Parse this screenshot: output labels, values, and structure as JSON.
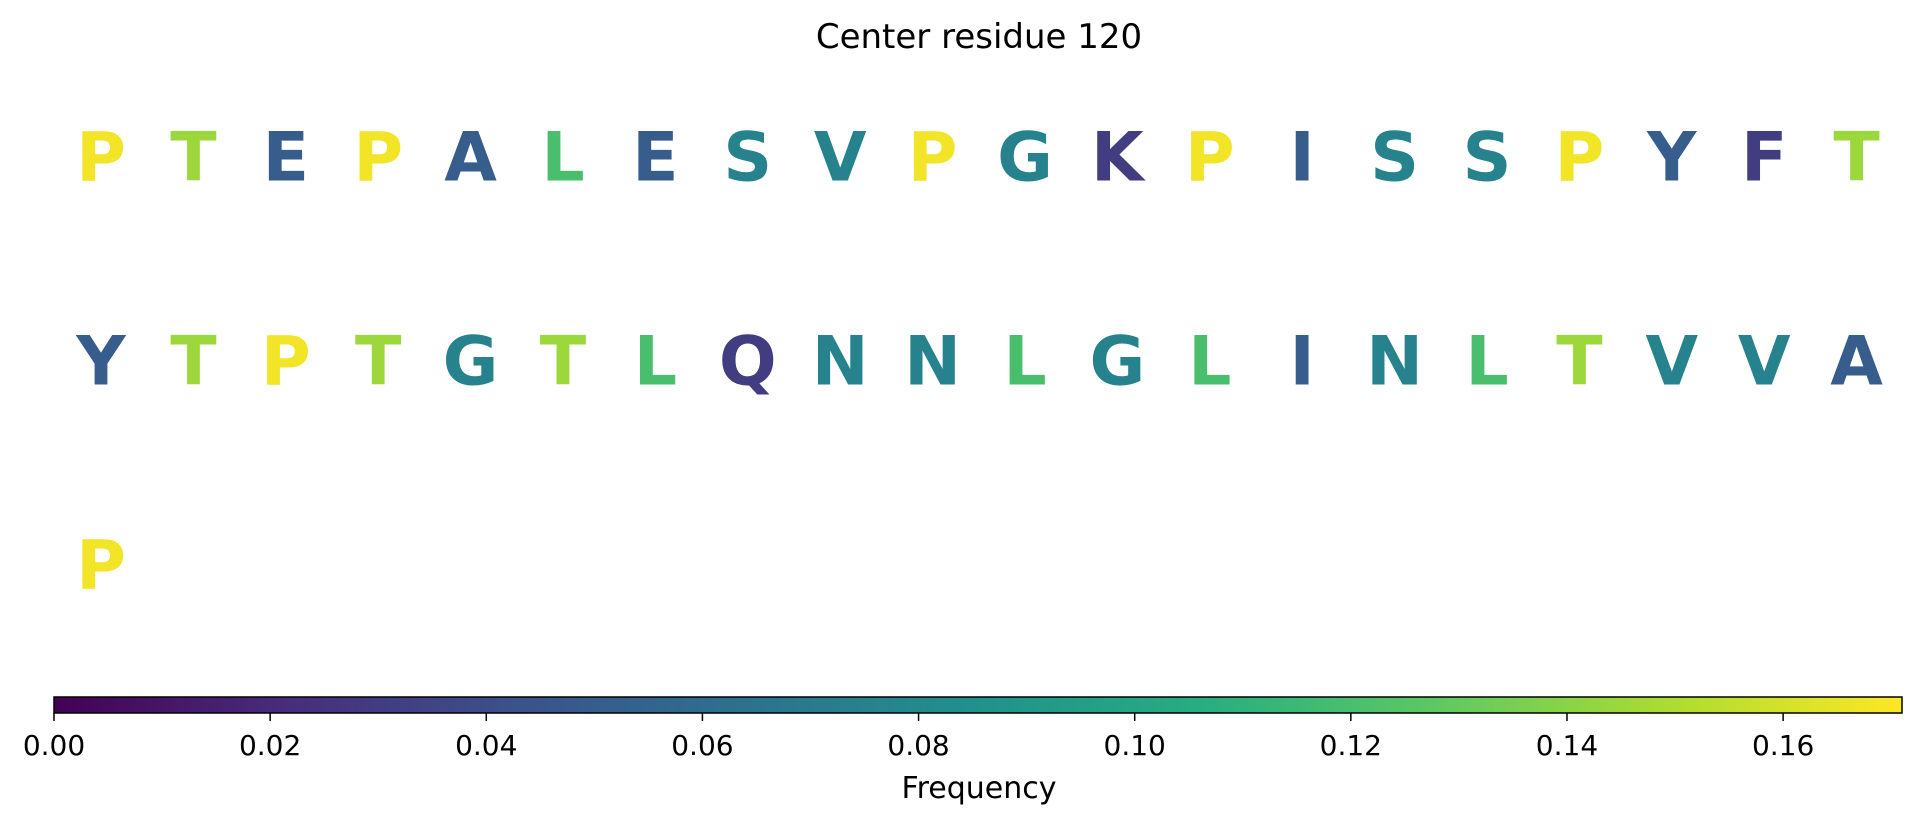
{
  "chart_data": {
    "type": "heatmap",
    "title": "Center residue 120",
    "residues": [
      {
        "letter": "P",
        "value": 0.168
      },
      {
        "letter": "T",
        "value": 0.145
      },
      {
        "letter": "E",
        "value": 0.05
      },
      {
        "letter": "P",
        "value": 0.168
      },
      {
        "letter": "A",
        "value": 0.05
      },
      {
        "letter": "L",
        "value": 0.12
      },
      {
        "letter": "E",
        "value": 0.05
      },
      {
        "letter": "S",
        "value": 0.075
      },
      {
        "letter": "V",
        "value": 0.075
      },
      {
        "letter": "P",
        "value": 0.168
      },
      {
        "letter": "G",
        "value": 0.075
      },
      {
        "letter": "K",
        "value": 0.03
      },
      {
        "letter": "P",
        "value": 0.168
      },
      {
        "letter": "I",
        "value": 0.05
      },
      {
        "letter": "S",
        "value": 0.075
      },
      {
        "letter": "S",
        "value": 0.075
      },
      {
        "letter": "P",
        "value": 0.168
      },
      {
        "letter": "Y",
        "value": 0.05
      },
      {
        "letter": "F",
        "value": 0.03
      },
      {
        "letter": "T",
        "value": 0.145
      },
      {
        "letter": "Y",
        "value": 0.05
      },
      {
        "letter": "T",
        "value": 0.145
      },
      {
        "letter": "P",
        "value": 0.168
      },
      {
        "letter": "T",
        "value": 0.145
      },
      {
        "letter": "G",
        "value": 0.075
      },
      {
        "letter": "T",
        "value": 0.145
      },
      {
        "letter": "L",
        "value": 0.12
      },
      {
        "letter": "Q",
        "value": 0.03
      },
      {
        "letter": "N",
        "value": 0.075
      },
      {
        "letter": "N",
        "value": 0.075
      },
      {
        "letter": "L",
        "value": 0.12
      },
      {
        "letter": "G",
        "value": 0.075
      },
      {
        "letter": "L",
        "value": 0.12
      },
      {
        "letter": "I",
        "value": 0.05
      },
      {
        "letter": "N",
        "value": 0.075
      },
      {
        "letter": "L",
        "value": 0.12
      },
      {
        "letter": "T",
        "value": 0.145
      },
      {
        "letter": "V",
        "value": 0.075
      },
      {
        "letter": "V",
        "value": 0.075
      },
      {
        "letter": "A",
        "value": 0.05
      },
      {
        "letter": "P",
        "value": 0.168
      }
    ],
    "colorbar": {
      "colormap": "viridis",
      "label": "Frequency",
      "range": [
        0.0,
        0.171
      ],
      "ticks": [
        "0.00",
        "0.02",
        "0.04",
        "0.06",
        "0.08",
        "0.10",
        "0.12",
        "0.14",
        "0.16"
      ]
    }
  }
}
